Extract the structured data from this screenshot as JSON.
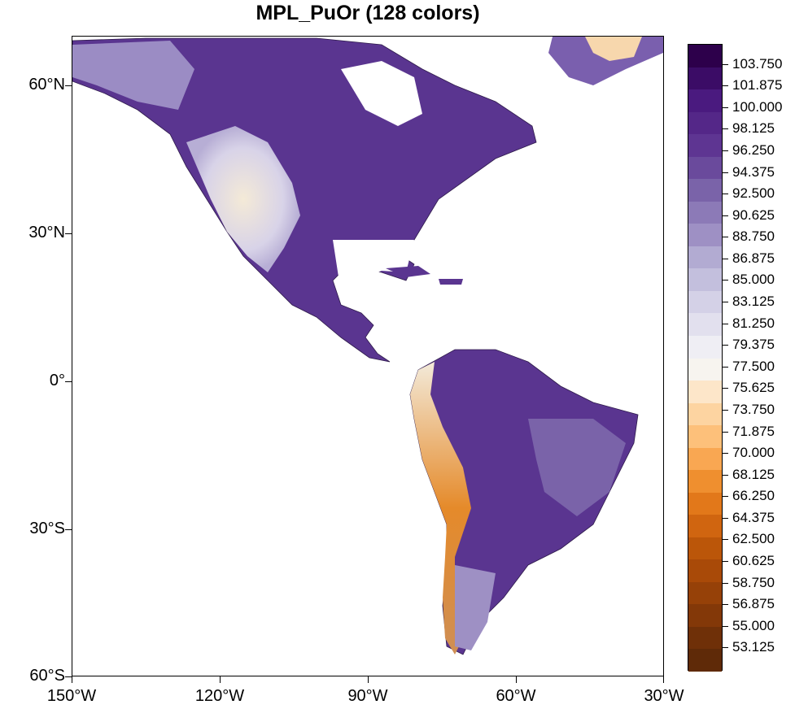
{
  "title": "MPL_PuOr (128 colors)",
  "map": {
    "lat_labels": [
      "60°N",
      "30°N",
      "0°",
      "30°S",
      "60°S"
    ],
    "lon_labels": [
      "150°W",
      "120°W",
      "90°W",
      "60°W",
      "30°W"
    ]
  },
  "colorbar": {
    "labels": [
      "103.750",
      "101.875",
      "100.000",
      "98.125",
      "96.250",
      "94.375",
      "92.500",
      "90.625",
      "88.750",
      "86.875",
      "85.000",
      "83.125",
      "81.250",
      "79.375",
      "77.500",
      "75.625",
      "73.750",
      "71.875",
      "70.000",
      "68.125",
      "66.250",
      "64.375",
      "62.500",
      "60.625",
      "58.750",
      "56.875",
      "55.000",
      "53.125"
    ],
    "colors": [
      "#2d004b",
      "#3b0c66",
      "#4a1a7f",
      "#542788",
      "#5e3592",
      "#6a4a9c",
      "#7a63a9",
      "#8c7ab7",
      "#9e90c4",
      "#b2abd2",
      "#c3bfdd",
      "#d4d1e7",
      "#e2e0ee",
      "#efeef4",
      "#f7f4ef",
      "#fde6c9",
      "#fdd4a1",
      "#fdc07a",
      "#f9a752",
      "#ef8f2f",
      "#e2781a",
      "#d06510",
      "#bb5609",
      "#a94a08",
      "#964108",
      "#833808",
      "#6f3008",
      "#5f2a08"
    ]
  }
}
